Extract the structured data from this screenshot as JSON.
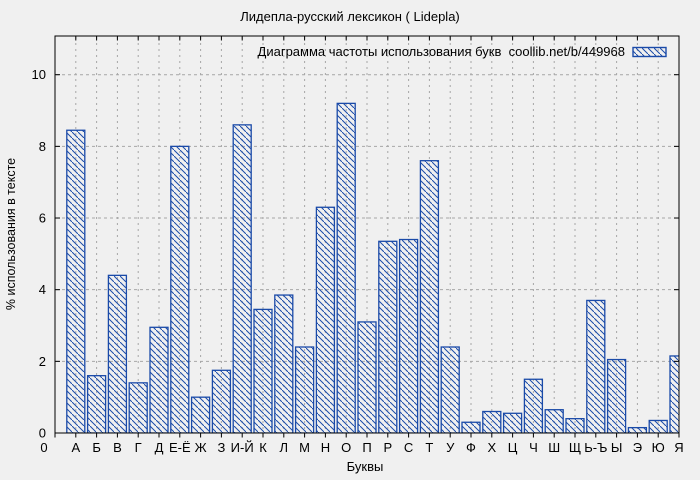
{
  "chart_data": {
    "type": "bar",
    "title": "Лидепла-русский лексикон ( Lidepla)",
    "legend_label": "Диаграмма частоты использования букв  coollib.net/b/449968",
    "legend_position": "top-right-inside",
    "xlabel": "Буквы",
    "ylabel": "% использования в тексте",
    "origin_label": "0",
    "categories": [
      "А",
      "Б",
      "В",
      "Г",
      "Д",
      "Е-Ё",
      "Ж",
      "З",
      "И-Й",
      "К",
      "Л",
      "М",
      "Н",
      "О",
      "П",
      "Р",
      "С",
      "Т",
      "У",
      "Ф",
      "Х",
      "Ц",
      "Ч",
      "Ш",
      "Щ",
      "Ь-Ъ",
      "Ы",
      "Э",
      "Ю",
      "Я"
    ],
    "values": [
      8.45,
      1.6,
      4.4,
      1.4,
      2.95,
      8.0,
      1.0,
      1.75,
      8.6,
      3.45,
      3.85,
      2.4,
      6.3,
      9.2,
      3.1,
      5.35,
      5.4,
      7.6,
      2.4,
      0.3,
      0.6,
      0.55,
      1.5,
      0.65,
      0.4,
      3.7,
      2.05,
      0.15,
      0.35,
      2.15
    ],
    "yticks": [
      0,
      2,
      4,
      6,
      8,
      10
    ],
    "ylim": [
      0,
      11.08
    ],
    "grid": true,
    "bar_style": "diagonal-hatch",
    "colors": {
      "bar": "#1a4aa8",
      "grid": "#a6a6a6",
      "frame": "#000000",
      "background": "#f0f0f0"
    }
  }
}
